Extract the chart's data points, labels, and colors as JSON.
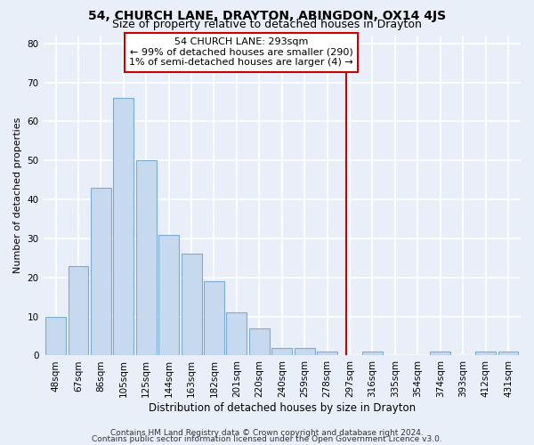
{
  "title": "54, CHURCH LANE, DRAYTON, ABINGDON, OX14 4JS",
  "subtitle": "Size of property relative to detached houses in Drayton",
  "xlabel": "Distribution of detached houses by size in Drayton",
  "ylabel": "Number of detached properties",
  "categories": [
    "48sqm",
    "67sqm",
    "86sqm",
    "105sqm",
    "125sqm",
    "144sqm",
    "163sqm",
    "182sqm",
    "201sqm",
    "220sqm",
    "240sqm",
    "259sqm",
    "278sqm",
    "297sqm",
    "316sqm",
    "335sqm",
    "354sqm",
    "374sqm",
    "393sqm",
    "412sqm",
    "431sqm"
  ],
  "values": [
    10,
    23,
    43,
    66,
    50,
    31,
    26,
    19,
    11,
    7,
    2,
    2,
    1,
    0,
    1,
    0,
    0,
    1,
    0,
    1,
    1
  ],
  "bar_color": "#c6d9ee",
  "bar_edge_color": "#7aadd4",
  "background_color": "#e8eff8",
  "grid_color": "#ffffff",
  "vline_x_index": 12.85,
  "vline_color": "#cc0000",
  "annotation_text": "54 CHURCH LANE: 293sqm\n← 99% of detached houses are smaller (290)\n1% of semi-detached houses are larger (4) →",
  "annotation_box_color": "#ffffff",
  "annotation_box_edge": "#cc0000",
  "footer1": "Contains HM Land Registry data © Crown copyright and database right 2024.",
  "footer2": "Contains public sector information licensed under the Open Government Licence v3.0.",
  "ylim": [
    0,
    82
  ],
  "yticks": [
    0,
    10,
    20,
    30,
    40,
    50,
    60,
    70,
    80
  ],
  "title_fontsize": 10,
  "subtitle_fontsize": 9,
  "xlabel_fontsize": 8.5,
  "ylabel_fontsize": 8,
  "tick_fontsize": 7.5,
  "annotation_fontsize": 8,
  "footer_fontsize": 6.5
}
